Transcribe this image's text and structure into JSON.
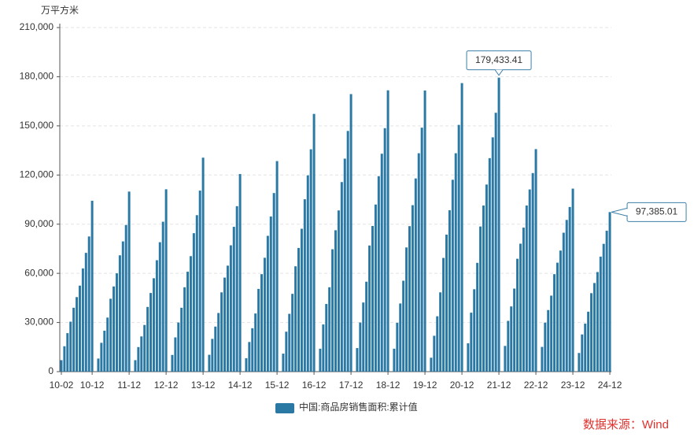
{
  "chart_data": {
    "type": "bar",
    "y_axis_label": "万平方米",
    "legend_position": "bottom",
    "source": "数据来源：Wind",
    "categories": [
      "10-02",
      null,
      null,
      null,
      null,
      null,
      null,
      null,
      null,
      null,
      "10-12",
      null,
      null,
      null,
      null,
      null,
      null,
      null,
      null,
      null,
      null,
      null,
      "11-12",
      null,
      null,
      null,
      null,
      null,
      null,
      null,
      null,
      null,
      null,
      null,
      "12-12",
      null,
      null,
      null,
      null,
      null,
      null,
      null,
      null,
      null,
      null,
      null,
      "13-12",
      null,
      null,
      null,
      null,
      null,
      null,
      null,
      null,
      null,
      null,
      null,
      "14-12",
      null,
      null,
      null,
      null,
      null,
      null,
      null,
      null,
      null,
      null,
      null,
      "15-12",
      null,
      null,
      null,
      null,
      null,
      null,
      null,
      null,
      null,
      null,
      null,
      "16-12",
      null,
      null,
      null,
      null,
      null,
      null,
      null,
      null,
      null,
      null,
      null,
      "17-12",
      null,
      null,
      null,
      null,
      null,
      null,
      null,
      null,
      null,
      null,
      null,
      "18-12",
      null,
      null,
      null,
      null,
      null,
      null,
      null,
      null,
      null,
      null,
      null,
      "19-12",
      null,
      null,
      null,
      null,
      null,
      null,
      null,
      null,
      null,
      null,
      null,
      "20-12",
      null,
      null,
      null,
      null,
      null,
      null,
      null,
      null,
      null,
      null,
      null,
      "21-12",
      null,
      null,
      null,
      null,
      null,
      null,
      null,
      null,
      null,
      null,
      null,
      "22-12",
      null,
      null,
      null,
      null,
      null,
      null,
      null,
      null,
      null,
      null,
      null,
      "23-12",
      null,
      null,
      null,
      null,
      null,
      null,
      null,
      null,
      null,
      null,
      null,
      "24-12"
    ],
    "series": [
      {
        "name": "中国:商品房销售面积:累计值",
        "color": "#2a78a4",
        "values": [
          7000,
          15500,
          23500,
          30500,
          39000,
          45500,
          52500,
          63000,
          72500,
          82500,
          104300,
          null,
          8000,
          17600,
          25000,
          33000,
          44500,
          52000,
          60000,
          71000,
          79500,
          89500,
          109900,
          null,
          7000,
          15000,
          21500,
          28500,
          39500,
          48000,
          57000,
          68000,
          79000,
          91500,
          111300,
          null,
          10200,
          20900,
          30000,
          39000,
          51500,
          61000,
          70500,
          84500,
          95500,
          110500,
          130600,
          null,
          10300,
          20000,
          27500,
          35800,
          48400,
          57400,
          64700,
          77100,
          88400,
          101000,
          120600,
          null,
          8200,
          18100,
          26500,
          35500,
          50500,
          59500,
          69500,
          82900,
          94700,
          109000,
          128500,
          null,
          11000,
          24400,
          35300,
          47500,
          64300,
          75500,
          87200,
          105200,
          119800,
          135700,
          157300,
          null,
          14000,
          28800,
          41300,
          51500,
          74700,
          86300,
          98400,
          115700,
          130000,
          146900,
          169400,
          null,
          14400,
          30000,
          42200,
          54900,
          77000,
          88900,
          102000,
          119300,
          133000,
          148600,
          171700,
          null,
          14000,
          29800,
          41600,
          55500,
          75800,
          88800,
          101600,
          117900,
          133300,
          148900,
          171600,
          null,
          8500,
          21900,
          33800,
          48400,
          69400,
          83600,
          98500,
          117100,
          133300,
          150600,
          176100,
          null,
          17300,
          36000,
          50300,
          66400,
          88600,
          101400,
          114200,
          130300,
          143000,
          158000,
          179433.41,
          null,
          15700,
          31000,
          39800,
          50700,
          68900,
          78100,
          87900,
          101400,
          111200,
          121200,
          135800,
          null,
          15100,
          29900,
          37600,
          46400,
          59500,
          66500,
          73900,
          84800,
          92600,
          100500,
          111700,
          null,
          11400,
          22700,
          29300,
          36600,
          47900,
          54100,
          60800,
          70200,
          78000,
          86000,
          97385.01
        ],
        "value_labels": [
          null,
          null,
          null,
          null,
          null,
          null,
          null,
          null,
          null,
          null,
          null,
          null,
          null,
          null,
          null,
          null,
          null,
          null,
          null,
          null,
          null,
          null,
          null,
          null,
          null,
          null,
          null,
          null,
          null,
          null,
          null,
          null,
          null,
          null,
          null,
          null,
          null,
          null,
          null,
          null,
          null,
          null,
          null,
          null,
          null,
          null,
          null,
          null,
          null,
          null,
          null,
          null,
          null,
          null,
          null,
          null,
          null,
          null,
          null,
          null,
          null,
          null,
          null,
          null,
          null,
          null,
          null,
          null,
          null,
          null,
          null,
          null,
          null,
          null,
          null,
          null,
          null,
          null,
          null,
          null,
          null,
          null,
          null,
          null,
          null,
          null,
          null,
          null,
          null,
          null,
          null,
          null,
          null,
          null,
          null,
          null,
          null,
          null,
          null,
          null,
          null,
          null,
          null,
          null,
          null,
          null,
          null,
          null,
          null,
          null,
          null,
          null,
          null,
          null,
          null,
          null,
          null,
          null,
          null,
          null,
          null,
          null,
          null,
          null,
          null,
          null,
          null,
          null,
          null,
          null,
          null,
          null,
          null,
          null,
          null,
          null,
          null,
          null,
          null,
          null,
          null,
          null,
          "179,433.41",
          null,
          null,
          null,
          null,
          null,
          null,
          null,
          null,
          null,
          null,
          null,
          null,
          null,
          null,
          null,
          null,
          null,
          null,
          null,
          null,
          null,
          null,
          null,
          null,
          null,
          null,
          null,
          null,
          null,
          null,
          null,
          null,
          null,
          null,
          null,
          "97,385.01"
        ]
      }
    ],
    "ylim": [
      0,
      210000
    ],
    "yticks": [
      0,
      {
        "value": 30000,
        "label": "30,000"
      },
      {
        "value": 60000,
        "label": "60,000"
      },
      {
        "value": 90000,
        "label": "90,000"
      },
      {
        "value": 120000,
        "label": "120,000"
      },
      {
        "value": 150000,
        "label": "150,000"
      },
      {
        "value": 180000,
        "label": "180,000"
      },
      {
        "value": 210000,
        "label": "210,000"
      }
    ],
    "grid": true
  }
}
